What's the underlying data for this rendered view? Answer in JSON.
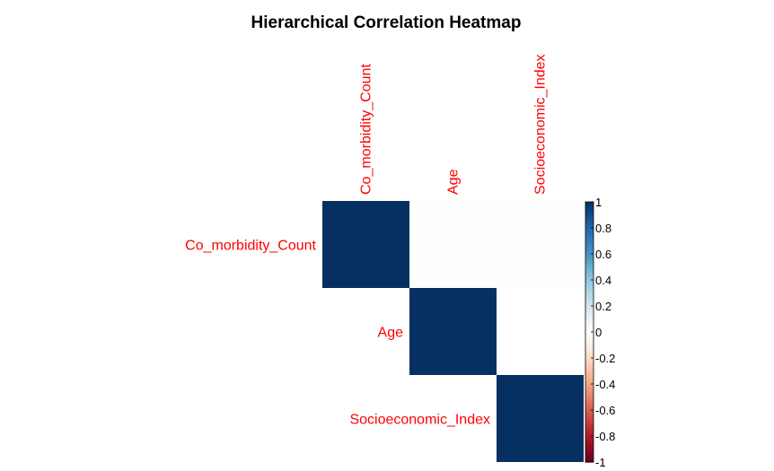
{
  "chart_data": {
    "type": "heatmap",
    "title": "Hierarchical Correlation Heatmap",
    "variables": [
      "Co_morbidity_Count",
      "Age",
      "Socioeconomic_Index"
    ],
    "matrix": [
      [
        1.0,
        0.01,
        0.01
      ],
      [
        0.01,
        1.0,
        0.0
      ],
      [
        0.01,
        0.0,
        1.0
      ]
    ],
    "display": "upper",
    "label_color": "#ff0000",
    "color_scale": {
      "range": [
        -1,
        1
      ],
      "ticks": [
        "-1",
        "-0.8",
        "-0.6",
        "-0.4",
        "-0.2",
        "0",
        "0.2",
        "0.4",
        "0.6",
        "0.8",
        "1"
      ],
      "colors": [
        "#67001f",
        "#b2182b",
        "#d6604d",
        "#f4a582",
        "#fddbc7",
        "#ffffff",
        "#d1e5f0",
        "#92c5de",
        "#4393c3",
        "#2166ac",
        "#053061"
      ]
    }
  }
}
